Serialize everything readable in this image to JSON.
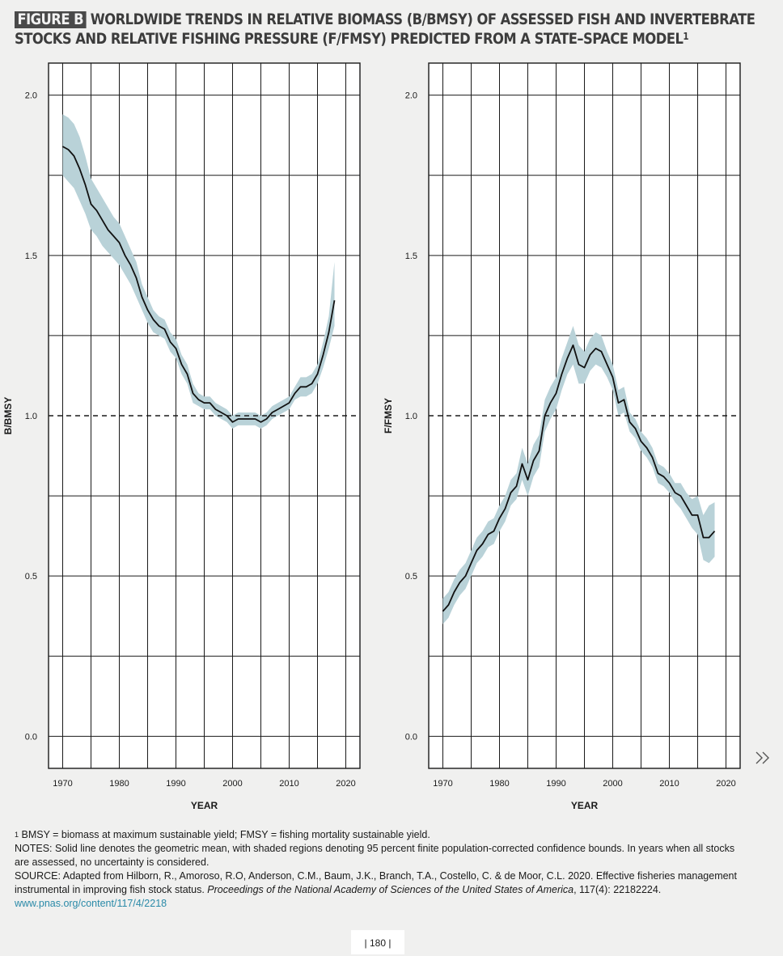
{
  "title": {
    "badge": "FIGURE B",
    "text": "WORLDWIDE TRENDS IN RELATIVE BIOMASS (B/BMSY) OF ASSESSED FISH AND INVERTEBRATE STOCKS AND RELATIVE FISHING PRESSURE (F/FMSY) PREDICTED FROM A STATE–SPACE MODEL",
    "sup": "1"
  },
  "colors": {
    "line": "#111111",
    "band": "#b9d2d8",
    "grid": "#1a1a1a",
    "background": "#f0f0ef",
    "link": "#2a8aa8"
  },
  "chart_data": [
    {
      "type": "line",
      "title": "",
      "xlabel": "YEAR",
      "ylabel": "B/BMSY",
      "xlim": [
        1967.5,
        2022.5
      ],
      "ylim": [
        -0.1,
        2.1
      ],
      "xticks": [
        1970,
        1980,
        1990,
        2000,
        2010,
        2020
      ],
      "yticks": [
        0.0,
        0.5,
        1.0,
        1.5,
        2.0
      ],
      "ytick_labels": [
        "0.0",
        "0.5",
        "1.0",
        "1.5",
        "2.0"
      ],
      "reference_line": {
        "y": 1.0,
        "style": "dashed"
      },
      "grid": true,
      "x": [
        1970,
        1971,
        1972,
        1973,
        1974,
        1975,
        1976,
        1977,
        1978,
        1979,
        1980,
        1981,
        1982,
        1983,
        1984,
        1985,
        1986,
        1987,
        1988,
        1989,
        1990,
        1991,
        1992,
        1993,
        1994,
        1995,
        1996,
        1997,
        1998,
        1999,
        2000,
        2001,
        2002,
        2003,
        2004,
        2005,
        2006,
        2007,
        2008,
        2009,
        2010,
        2011,
        2012,
        2013,
        2014,
        2015,
        2016,
        2017,
        2018
      ],
      "series": [
        {
          "y": [
            1.84,
            1.83,
            1.81,
            1.77,
            1.72,
            1.66,
            1.64,
            1.61,
            1.58,
            1.56,
            1.54,
            1.5,
            1.47,
            1.43,
            1.37,
            1.33,
            1.3,
            1.28,
            1.27,
            1.23,
            1.21,
            1.16,
            1.13,
            1.07,
            1.05,
            1.04,
            1.04,
            1.02,
            1.01,
            1.0,
            0.98,
            0.99,
            0.99,
            0.99,
            0.99,
            0.98,
            0.99,
            1.01,
            1.02,
            1.03,
            1.04,
            1.07,
            1.09,
            1.09,
            1.1,
            1.13,
            1.19,
            1.26,
            1.36
          ],
          "lower": [
            1.75,
            1.73,
            1.71,
            1.67,
            1.63,
            1.58,
            1.56,
            1.53,
            1.51,
            1.49,
            1.47,
            1.44,
            1.41,
            1.37,
            1.33,
            1.29,
            1.26,
            1.25,
            1.24,
            1.2,
            1.18,
            1.13,
            1.1,
            1.04,
            1.03,
            1.02,
            1.02,
            1.0,
            0.99,
            0.98,
            0.96,
            0.97,
            0.97,
            0.97,
            0.97,
            0.96,
            0.97,
            0.99,
            1.0,
            1.01,
            1.02,
            1.05,
            1.06,
            1.06,
            1.07,
            1.1,
            1.15,
            1.21,
            1.28
          ],
          "upper": [
            1.94,
            1.93,
            1.91,
            1.87,
            1.81,
            1.74,
            1.71,
            1.68,
            1.65,
            1.62,
            1.6,
            1.56,
            1.52,
            1.48,
            1.41,
            1.37,
            1.33,
            1.31,
            1.3,
            1.26,
            1.24,
            1.19,
            1.16,
            1.1,
            1.07,
            1.06,
            1.06,
            1.04,
            1.03,
            1.02,
            1.0,
            1.01,
            1.01,
            1.01,
            1.01,
            1.0,
            1.01,
            1.03,
            1.04,
            1.05,
            1.06,
            1.09,
            1.12,
            1.12,
            1.13,
            1.16,
            1.23,
            1.31,
            1.48
          ]
        }
      ]
    },
    {
      "type": "line",
      "title": "",
      "xlabel": "YEAR",
      "ylabel": "F/FMSY",
      "xlim": [
        1967.5,
        2022.5
      ],
      "ylim": [
        -0.1,
        2.1
      ],
      "xticks": [
        1970,
        1980,
        1990,
        2000,
        2010,
        2020
      ],
      "yticks": [
        0.0,
        0.5,
        1.0,
        1.5,
        2.0
      ],
      "ytick_labels": [
        "0.0",
        "0.5",
        "1.0",
        "1.5",
        "2.0"
      ],
      "reference_line": {
        "y": 1.0,
        "style": "dashed"
      },
      "grid": true,
      "x": [
        1970,
        1971,
        1972,
        1973,
        1974,
        1975,
        1976,
        1977,
        1978,
        1979,
        1980,
        1981,
        1982,
        1983,
        1984,
        1985,
        1986,
        1987,
        1988,
        1989,
        1990,
        1991,
        1992,
        1993,
        1994,
        1995,
        1996,
        1997,
        1998,
        1999,
        2000,
        2001,
        2002,
        2003,
        2004,
        2005,
        2006,
        2007,
        2008,
        2009,
        2010,
        2011,
        2012,
        2013,
        2014,
        2015,
        2016,
        2017,
        2018
      ],
      "series": [
        {
          "y": [
            0.39,
            0.41,
            0.45,
            0.48,
            0.5,
            0.54,
            0.58,
            0.6,
            0.63,
            0.64,
            0.68,
            0.71,
            0.76,
            0.78,
            0.85,
            0.8,
            0.86,
            0.89,
            1.0,
            1.04,
            1.07,
            1.13,
            1.18,
            1.22,
            1.16,
            1.15,
            1.19,
            1.21,
            1.2,
            1.16,
            1.12,
            1.04,
            1.05,
            0.98,
            0.96,
            0.92,
            0.9,
            0.87,
            0.82,
            0.81,
            0.79,
            0.76,
            0.75,
            0.72,
            0.69,
            0.69,
            0.62,
            0.62,
            0.64
          ],
          "lower": [
            0.35,
            0.37,
            0.41,
            0.44,
            0.46,
            0.5,
            0.54,
            0.56,
            0.59,
            0.6,
            0.64,
            0.67,
            0.72,
            0.74,
            0.8,
            0.75,
            0.81,
            0.84,
            0.95,
            0.99,
            1.02,
            1.08,
            1.13,
            1.16,
            1.1,
            1.1,
            1.14,
            1.16,
            1.15,
            1.12,
            1.08,
            1.0,
            1.01,
            0.95,
            0.93,
            0.89,
            0.87,
            0.84,
            0.79,
            0.78,
            0.76,
            0.73,
            0.71,
            0.68,
            0.65,
            0.63,
            0.55,
            0.54,
            0.56
          ],
          "upper": [
            0.43,
            0.45,
            0.49,
            0.52,
            0.54,
            0.58,
            0.62,
            0.64,
            0.67,
            0.68,
            0.72,
            0.75,
            0.8,
            0.82,
            0.9,
            0.85,
            0.91,
            0.94,
            1.05,
            1.09,
            1.12,
            1.18,
            1.23,
            1.28,
            1.22,
            1.2,
            1.24,
            1.26,
            1.25,
            1.2,
            1.16,
            1.08,
            1.09,
            1.01,
            0.99,
            0.95,
            0.93,
            0.9,
            0.85,
            0.84,
            0.82,
            0.79,
            0.79,
            0.76,
            0.74,
            0.75,
            0.69,
            0.72,
            0.73
          ]
        }
      ]
    }
  ],
  "notes": {
    "footnote_mark": "1",
    "footnote": " BMSY = biomass at maximum sustainable yield; FMSY = fishing mortality sustainable yield.",
    "notes": "NOTES: Solid line denotes the geometric mean, with shaded regions denoting 95 percent finite population-corrected confidence bounds. In years when all stocks are assessed, no uncertainty is considered.",
    "source_prefix": "SOURCE: Adapted from Hilborn, R., Amoroso, R.O, Anderson, C.M., Baum, J.K., Branch, T.A., Costello, C. & de Moor, C.L. 2020. Effective fisheries management instrumental in improving fish stock status. ",
    "source_journal": "Proceedings of the National Academy of Sciences of the United States of America",
    "source_suffix": ", 117(4): 22182224. ",
    "source_url": "www.pnas.org/content/117/4/2218"
  },
  "page_number": "| 180 |",
  "next_icon": "double-chevron-right-icon"
}
